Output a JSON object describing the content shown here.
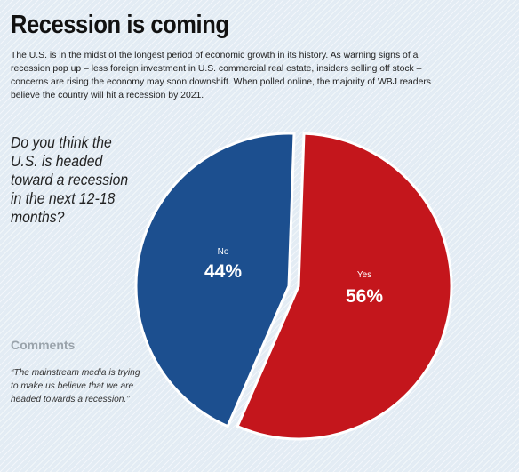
{
  "header": {
    "title": "Recession is coming",
    "intro": "The U.S. is in the midst of the longest period of economic growth in its history. As warning signs of a recession pop up – less foreign investment in U.S. commercial real estate, insiders selling off stock – concerns are rising the economy may soon downshift. When polled online, the majority of WBJ readers believe the country will hit a recession by 2021."
  },
  "question": "Do you think the U.S. is headed toward a recession in the next 12-18 months?",
  "comments": {
    "heading": "Comments",
    "quote": "“The mainstream media is trying to make us believe that we are headed towards a recession.”"
  },
  "colors": {
    "yes": "#c4161c",
    "no": "#1c4f8f"
  },
  "chart_data": {
    "type": "pie",
    "slices": [
      {
        "label": "Yes",
        "value": 56,
        "display": "56%",
        "color": "#c4161c"
      },
      {
        "label": "No",
        "value": 44,
        "display": "44%",
        "color": "#1c4f8f"
      }
    ]
  }
}
